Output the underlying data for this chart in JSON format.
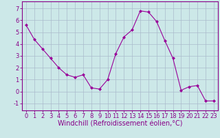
{
  "x": [
    0,
    1,
    2,
    3,
    4,
    5,
    6,
    7,
    8,
    9,
    10,
    11,
    12,
    13,
    14,
    15,
    16,
    17,
    18,
    19,
    20,
    21,
    22,
    23
  ],
  "y": [
    5.6,
    4.4,
    3.6,
    2.8,
    2.0,
    1.4,
    1.2,
    1.4,
    0.3,
    0.2,
    1.0,
    3.2,
    4.6,
    5.2,
    6.8,
    6.7,
    5.9,
    4.3,
    2.8,
    0.1,
    0.4,
    0.5,
    -0.8,
    -0.8
  ],
  "line_color": "#990099",
  "marker": "D",
  "marker_size": 2,
  "bg_color": "#cce8e8",
  "grid_color": "#aabbcc",
  "xlabel": "Windchill (Refroidissement éolien,°C)",
  "xlabel_fontsize": 7,
  "xlim": [
    -0.5,
    23.5
  ],
  "ylim": [
    -1.6,
    7.6
  ],
  "yticks": [
    -1,
    0,
    1,
    2,
    3,
    4,
    5,
    6,
    7
  ],
  "xticks": [
    0,
    1,
    2,
    3,
    4,
    5,
    6,
    7,
    8,
    9,
    10,
    11,
    12,
    13,
    14,
    15,
    16,
    17,
    18,
    19,
    20,
    21,
    22,
    23
  ],
  "tick_fontsize": 6,
  "spine_color": "#880088",
  "label_color": "#880088"
}
